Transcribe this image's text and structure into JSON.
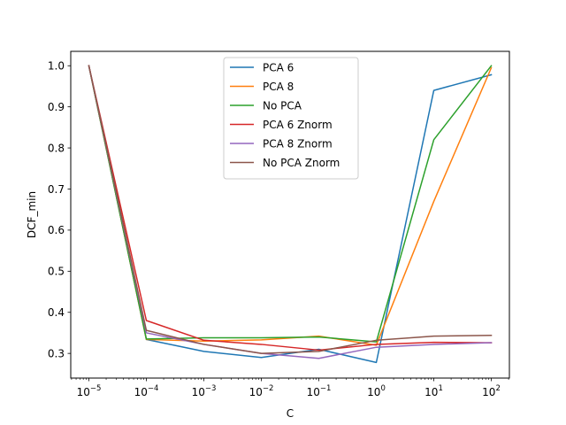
{
  "chart_data": {
    "type": "line",
    "xlabel": "C",
    "ylabel": "DCF_min",
    "x_scale": "log",
    "x": [
      1e-05,
      0.0001,
      0.001,
      0.01,
      0.1,
      1,
      10,
      100
    ],
    "x_tick_labels": [
      {
        "base": "10",
        "exp": "−5"
      },
      {
        "base": "10",
        "exp": "−4"
      },
      {
        "base": "10",
        "exp": "−3"
      },
      {
        "base": "10",
        "exp": "−2"
      },
      {
        "base": "10",
        "exp": "−1"
      },
      {
        "base": "10",
        "exp": "0"
      },
      {
        "base": "10",
        "exp": "1"
      },
      {
        "base": "10",
        "exp": "2"
      }
    ],
    "ylim": [
      0.24,
      1.035
    ],
    "y_ticks": [
      0.3,
      0.4,
      0.5,
      0.6,
      0.7,
      0.8,
      0.9,
      1.0
    ],
    "y_tick_labels": [
      "0.3",
      "0.4",
      "0.5",
      "0.6",
      "0.7",
      "0.8",
      "0.9",
      "1.0"
    ],
    "grid": false,
    "legend_position": "upper-center",
    "series": [
      {
        "name": "PCA 6",
        "color": "#1f77b4",
        "values": [
          1.0,
          0.334,
          0.305,
          0.29,
          0.31,
          0.278,
          0.94,
          0.978
        ]
      },
      {
        "name": "PCA 8",
        "color": "#ff7f0e",
        "values": [
          1.0,
          0.334,
          0.33,
          0.333,
          0.342,
          0.32,
          0.67,
          0.995
        ]
      },
      {
        "name": "No PCA",
        "color": "#2ca02c",
        "values": [
          1.0,
          0.335,
          0.338,
          0.338,
          0.34,
          0.328,
          0.82,
          1.0
        ]
      },
      {
        "name": "PCA 6 Znorm",
        "color": "#d62728",
        "values": [
          1.0,
          0.38,
          0.332,
          0.322,
          0.308,
          0.322,
          0.327,
          0.326
        ]
      },
      {
        "name": "PCA 8 Znorm",
        "color": "#9467bd",
        "values": [
          1.0,
          0.35,
          0.322,
          0.3,
          0.288,
          0.315,
          0.322,
          0.326
        ]
      },
      {
        "name": "No PCA Znorm",
        "color": "#8c564b",
        "values": [
          1.0,
          0.356,
          0.322,
          0.3,
          0.305,
          0.332,
          0.342,
          0.344
        ]
      }
    ]
  }
}
